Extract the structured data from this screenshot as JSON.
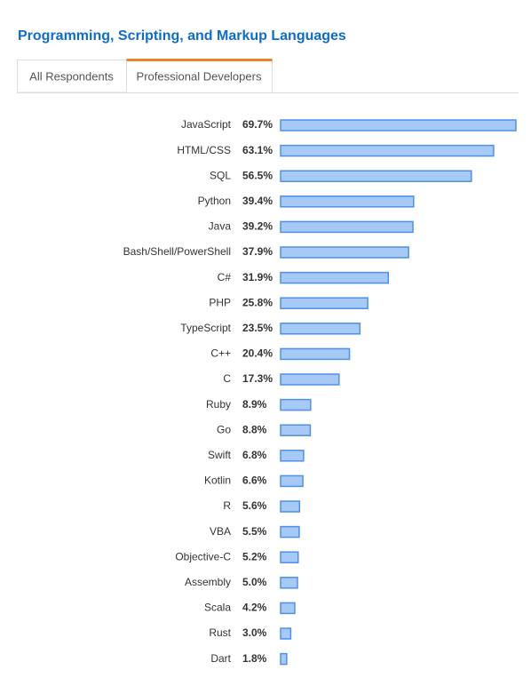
{
  "tabs": [
    "All Respondents",
    "Professional Developers"
  ],
  "active_tab": 1,
  "chart_data": {
    "type": "bar",
    "orientation": "horizontal",
    "title": "Programming, Scripting, and Markup Languages",
    "categories": [
      "JavaScript",
      "HTML/CSS",
      "SQL",
      "Python",
      "Java",
      "Bash/Shell/PowerShell",
      "C#",
      "PHP",
      "TypeScript",
      "C++",
      "C",
      "Ruby",
      "Go",
      "Swift",
      "Kotlin",
      "R",
      "VBA",
      "Objective-C",
      "Assembly",
      "Scala",
      "Rust",
      "Dart"
    ],
    "values": [
      69.7,
      63.1,
      56.5,
      39.4,
      39.2,
      37.9,
      31.9,
      25.8,
      23.5,
      20.4,
      17.3,
      8.9,
      8.8,
      6.8,
      6.6,
      5.6,
      5.5,
      5.2,
      5.0,
      4.2,
      3.0,
      1.8
    ],
    "value_labels": [
      "69.7%",
      "63.1%",
      "56.5%",
      "39.4%",
      "39.2%",
      "37.9%",
      "31.9%",
      "25.8%",
      "23.5%",
      "20.4%",
      "17.3%",
      "8.9%",
      "8.8%",
      "6.8%",
      "6.6%",
      "5.6%",
      "5.5%",
      "5.2%",
      "5.0%",
      "4.2%",
      "3.0%",
      "1.8%"
    ],
    "color": "#a6c9f6",
    "edge_color": "#4f90e8"
  }
}
